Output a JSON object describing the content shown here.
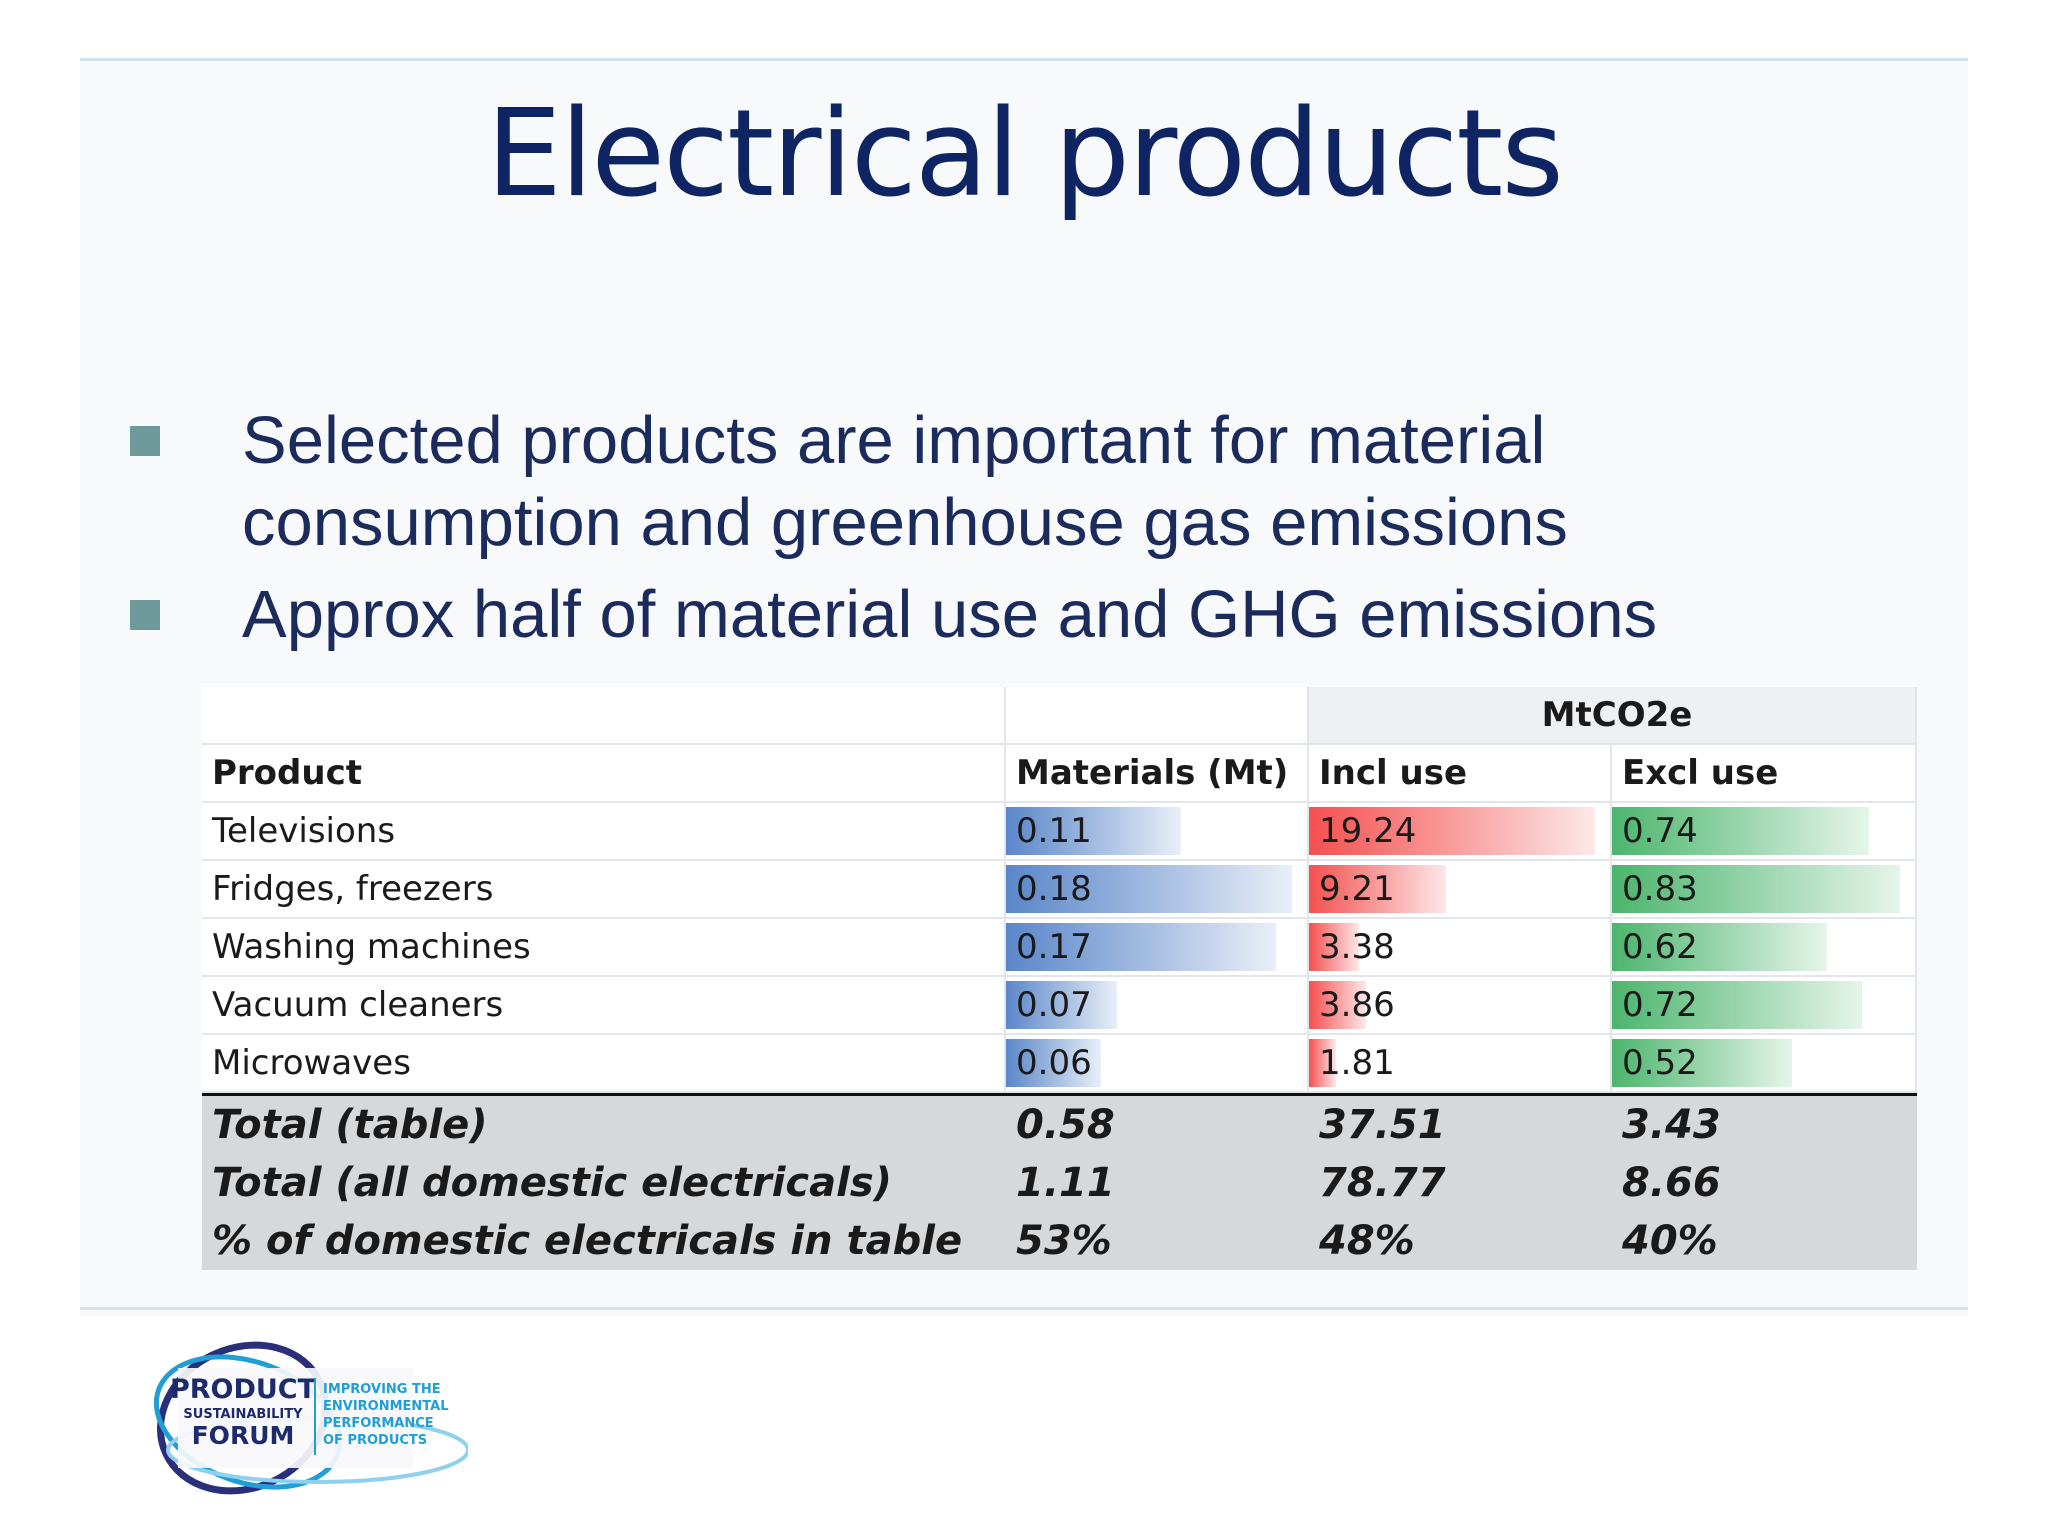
{
  "title": "Electrical products",
  "bullets": [
    "Selected products are important for material consumption and greenhouse gas emissions",
    "Approx half of material use and GHG emissions"
  ],
  "table": {
    "group_header": "MtCO2e",
    "columns": [
      "Product",
      "Materials (Mt)",
      "Incl use",
      "Excl use"
    ],
    "rows": [
      {
        "product": "Televisions",
        "materials": "0.11",
        "incl": "19.24",
        "excl": "0.74"
      },
      {
        "product": "Fridges, freezers",
        "materials": "0.18",
        "incl": "9.21",
        "excl": "0.83"
      },
      {
        "product": "Washing machines",
        "materials": "0.17",
        "incl": "3.38",
        "excl": "0.62"
      },
      {
        "product": "Vacuum cleaners",
        "materials": "0.07",
        "incl": "3.86",
        "excl": "0.72"
      },
      {
        "product": "Microwaves",
        "materials": "0.06",
        "incl": "1.81",
        "excl": "0.52"
      }
    ],
    "totals": [
      {
        "label": "Total (table)",
        "materials": "0.58",
        "incl": "37.51",
        "excl": "3.43"
      },
      {
        "label": "Total (all domestic electricals)",
        "materials": "1.11",
        "incl": "78.77",
        "excl": "8.66"
      },
      {
        "label": "% of domestic electricals in table",
        "materials": "53%",
        "incl": "48%",
        "excl": "40%"
      }
    ]
  },
  "bar_colors": {
    "materials": "#5a86c9",
    "incl": "#f4504f",
    "excl": "#4cb56d"
  },
  "logo": {
    "line1": "PRODUCT",
    "line2": "SUSTAINABILITY",
    "line3": "FORUM",
    "tag1": "IMPROVING THE",
    "tag2": "ENVIRONMENTAL",
    "tag3": "PERFORMANCE",
    "tag4": "OF PRODUCTS"
  }
}
